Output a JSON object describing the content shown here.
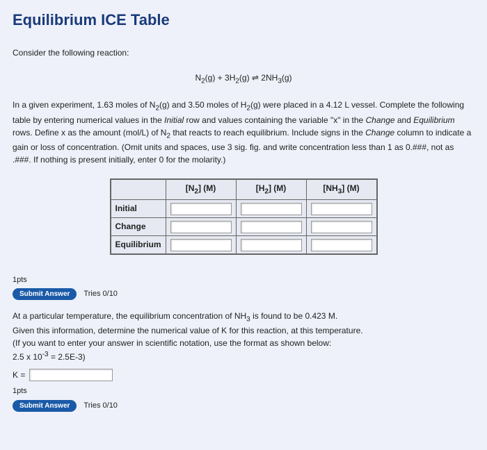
{
  "title": "Equilibrium ICE Table",
  "intro": "Consider the following reaction:",
  "equation_html": "N<sub>2</sub>(g) + 3H<sub>2</sub>(g) ⇌ 2NH<sub>3</sub>(g)",
  "desc_html": "In a given experiment, 1.63 moles of N<sub>2</sub>(g) and 3.50 moles of H<sub>2</sub>(g) were placed in a 4.12 L vessel. Complete the following table by entering numerical values in the <span class='ital'>Initial</span> row and values containing the variable \"x\" in the <span class='ital'>Change</span> and <span class='ital'>Equilibrium</span> rows. Define x as the amount (mol/L) of N<sub>2</sub> that reacts to reach equilibrium. Include signs in the <span class='ital'>Change</span> column to indicate a gain or loss of concentration. (Omit units and spaces, use 3 sig. fig. and write concentration less than 1 as 0.###, not as .###. If nothing is present initially, enter 0 for the molarity.)",
  "table": {
    "headers": {
      "blank": "",
      "n2_html": "[N<sub>2</sub>] (M)",
      "h2_html": "[H<sub>2</sub>] (M)",
      "nh3_html": "[NH<sub>3</sub>] (M)"
    },
    "rows": [
      {
        "label": "Initial",
        "inputs": [
          "n2-initial",
          "h2-initial",
          "nh3-initial"
        ]
      },
      {
        "label": "Change",
        "inputs": [
          "n2-change",
          "h2-change",
          "nh3-change"
        ]
      },
      {
        "label": "Equilibrium",
        "inputs": [
          "n2-eq",
          "h2-eq",
          "nh3-eq"
        ]
      }
    ]
  },
  "q1": {
    "pts": "1pts",
    "submit": "Submit Answer",
    "tries": "Tries 0/10"
  },
  "q2": {
    "text_html": "At a particular temperature, the equilibrium concentration of NH<sub>3</sub> is found to be 0.423 M.<br>Given this information, determine the numerical value of K for this reaction, at this temperature.<br>(If you want to enter your answer in scientific notation, use the format as shown below:<br>2.5 x 10<sup>-3</sup> = 2.5E-3)",
    "k_label": "K =",
    "pts": "1pts",
    "submit": "Submit Answer",
    "tries": "Tries 0/10"
  },
  "colors": {
    "page_bg": "#eef1f9",
    "heading": "#1a3a7a",
    "button_bg": "#1a5aa8",
    "border": "#666666"
  }
}
